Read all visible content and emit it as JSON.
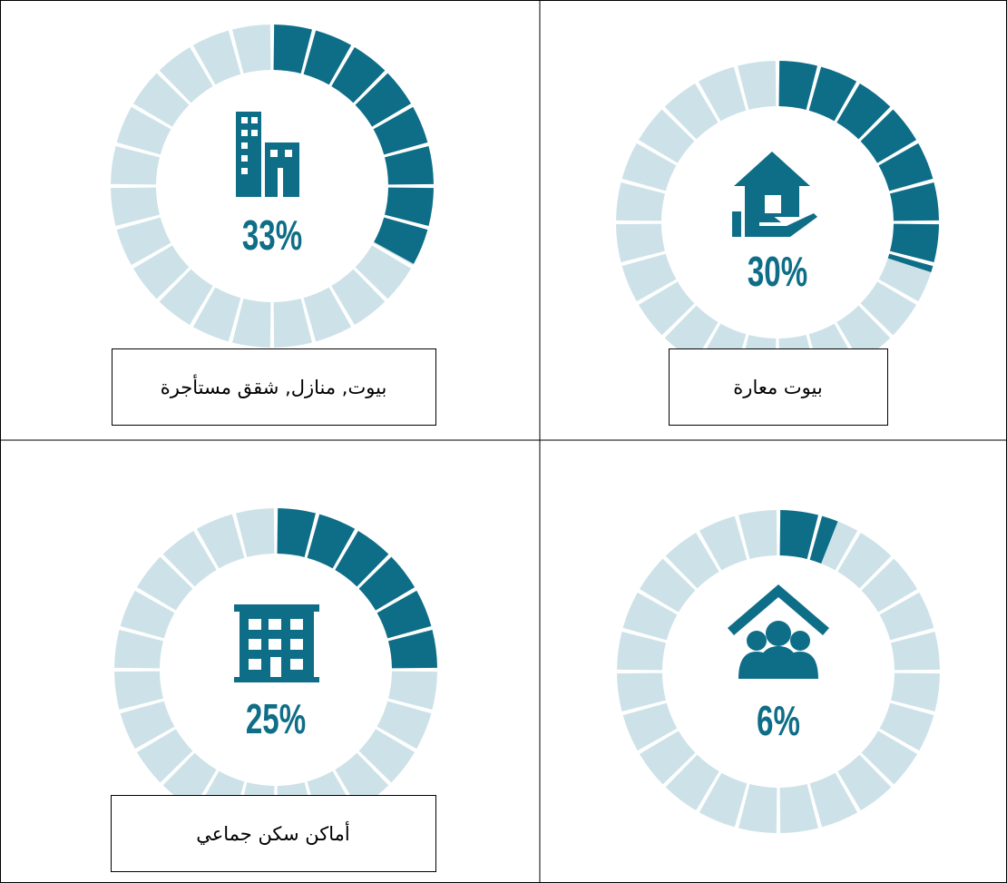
{
  "chart_data": [
    {
      "type": "gauge",
      "values": [
        33
      ],
      "value_labels": [
        "33%"
      ],
      "label": "بيوت, منازل, شقق مستأجرة",
      "color": "#0e6e87",
      "track_color": "#cde2e8",
      "segments": 24
    },
    {
      "type": "gauge",
      "values": [
        30
      ],
      "value_labels": [
        "30%"
      ],
      "label": "بيوت معارة",
      "color": "#0e6e87",
      "track_color": "#cde2e8",
      "segments": 24
    },
    {
      "type": "gauge",
      "values": [
        25
      ],
      "value_labels": [
        "25%"
      ],
      "label": "أماكن سكن جماعي",
      "color": "#0e6e87",
      "track_color": "#cde2e8",
      "segments": 24
    },
    {
      "type": "gauge",
      "values": [
        6
      ],
      "value_labels": [
        "6%"
      ],
      "color": "#0e6e87",
      "track_color": "#cde2e8",
      "segments": 24
    }
  ]
}
